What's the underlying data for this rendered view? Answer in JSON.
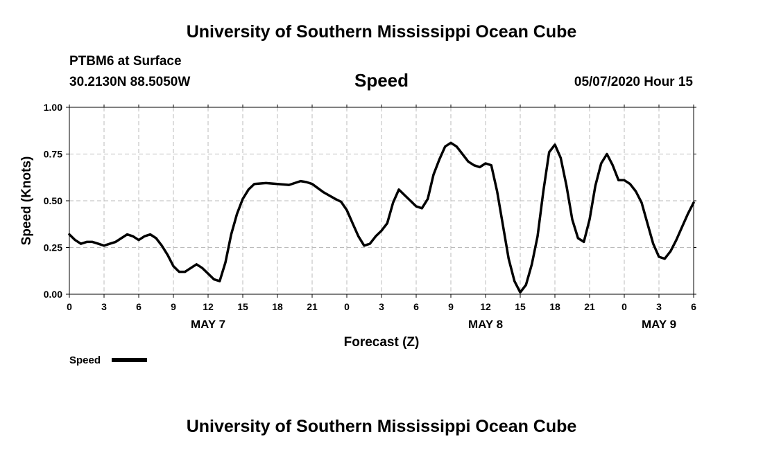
{
  "header": {
    "title": "University of Southern Mississippi Ocean Cube",
    "station": "PTBM6 at Surface",
    "coords": "30.2130N 88.5050W",
    "parameter": "Speed",
    "issued": "05/07/2020 Hour 15"
  },
  "footer": {
    "title": "University of Southern Mississippi Ocean Cube"
  },
  "legend": {
    "label": "Speed",
    "color": "#000000"
  },
  "chart_data": {
    "type": "line",
    "title": "Speed",
    "xlabel": "Forecast (Z)",
    "ylabel": "Speed (Knots)",
    "x_unit": "hours from 00Z MAY 7",
    "xlim": [
      0,
      54
    ],
    "ylim": [
      0,
      1
    ],
    "grid": true,
    "legend_position": "bottom-left",
    "y_ticks": [
      "0.00",
      "0.25",
      "0.50",
      "0.75",
      "1.00"
    ],
    "x_ticks": [
      {
        "x": 0,
        "label": "0"
      },
      {
        "x": 3,
        "label": "3"
      },
      {
        "x": 6,
        "label": "6"
      },
      {
        "x": 9,
        "label": "9"
      },
      {
        "x": 12,
        "label": "12"
      },
      {
        "x": 15,
        "label": "15"
      },
      {
        "x": 18,
        "label": "18"
      },
      {
        "x": 21,
        "label": "21"
      },
      {
        "x": 24,
        "label": "0"
      },
      {
        "x": 27,
        "label": "3"
      },
      {
        "x": 30,
        "label": "6"
      },
      {
        "x": 33,
        "label": "9"
      },
      {
        "x": 36,
        "label": "12"
      },
      {
        "x": 39,
        "label": "15"
      },
      {
        "x": 42,
        "label": "18"
      },
      {
        "x": 45,
        "label": "21"
      },
      {
        "x": 48,
        "label": "0"
      },
      {
        "x": 51,
        "label": "3"
      },
      {
        "x": 54,
        "label": "6"
      }
    ],
    "day_labels": [
      {
        "x": 12,
        "label": "MAY 7"
      },
      {
        "x": 36,
        "label": "MAY 8"
      },
      {
        "x": 51,
        "label": "MAY 9"
      }
    ],
    "series": [
      {
        "name": "Speed",
        "color": "#000000",
        "points": [
          [
            0,
            0.32
          ],
          [
            0.5,
            0.29
          ],
          [
            1,
            0.27
          ],
          [
            1.5,
            0.28
          ],
          [
            2,
            0.28
          ],
          [
            2.5,
            0.27
          ],
          [
            3,
            0.26
          ],
          [
            3.5,
            0.27
          ],
          [
            4,
            0.28
          ],
          [
            4.5,
            0.3
          ],
          [
            5,
            0.32
          ],
          [
            5.5,
            0.31
          ],
          [
            6,
            0.29
          ],
          [
            6.5,
            0.31
          ],
          [
            7,
            0.32
          ],
          [
            7.5,
            0.3
          ],
          [
            8,
            0.26
          ],
          [
            8.5,
            0.21
          ],
          [
            9,
            0.15
          ],
          [
            9.5,
            0.12
          ],
          [
            10,
            0.12
          ],
          [
            10.5,
            0.14
          ],
          [
            11,
            0.16
          ],
          [
            11.5,
            0.14
          ],
          [
            12,
            0.11
          ],
          [
            12.5,
            0.08
          ],
          [
            13,
            0.07
          ],
          [
            13.5,
            0.17
          ],
          [
            14,
            0.32
          ],
          [
            14.5,
            0.43
          ],
          [
            15,
            0.51
          ],
          [
            15.5,
            0.56
          ],
          [
            16,
            0.59
          ],
          [
            17,
            0.595
          ],
          [
            18,
            0.59
          ],
          [
            19,
            0.585
          ],
          [
            20,
            0.605
          ],
          [
            20.5,
            0.6
          ],
          [
            21,
            0.59
          ],
          [
            22,
            0.545
          ],
          [
            23,
            0.51
          ],
          [
            23.5,
            0.495
          ],
          [
            24,
            0.45
          ],
          [
            24.5,
            0.38
          ],
          [
            25,
            0.31
          ],
          [
            25.5,
            0.26
          ],
          [
            26,
            0.27
          ],
          [
            26.5,
            0.31
          ],
          [
            27,
            0.34
          ],
          [
            27.5,
            0.38
          ],
          [
            28,
            0.49
          ],
          [
            28.5,
            0.56
          ],
          [
            29,
            0.53
          ],
          [
            29.5,
            0.5
          ],
          [
            30,
            0.47
          ],
          [
            30.5,
            0.46
          ],
          [
            31,
            0.51
          ],
          [
            31.5,
            0.64
          ],
          [
            32,
            0.72
          ],
          [
            32.5,
            0.79
          ],
          [
            33,
            0.81
          ],
          [
            33.5,
            0.79
          ],
          [
            34,
            0.75
          ],
          [
            34.5,
            0.71
          ],
          [
            35,
            0.69
          ],
          [
            35.5,
            0.68
          ],
          [
            36,
            0.7
          ],
          [
            36.5,
            0.69
          ],
          [
            37,
            0.55
          ],
          [
            37.5,
            0.37
          ],
          [
            38,
            0.19
          ],
          [
            38.5,
            0.07
          ],
          [
            39,
            0.01
          ],
          [
            39.5,
            0.05
          ],
          [
            40,
            0.16
          ],
          [
            40.5,
            0.31
          ],
          [
            41,
            0.55
          ],
          [
            41.5,
            0.76
          ],
          [
            42,
            0.8
          ],
          [
            42.5,
            0.73
          ],
          [
            43,
            0.58
          ],
          [
            43.5,
            0.4
          ],
          [
            44,
            0.3
          ],
          [
            44.5,
            0.28
          ],
          [
            45,
            0.4
          ],
          [
            45.5,
            0.58
          ],
          [
            46,
            0.7
          ],
          [
            46.5,
            0.75
          ],
          [
            47,
            0.69
          ],
          [
            47.5,
            0.61
          ],
          [
            48,
            0.61
          ],
          [
            48.5,
            0.59
          ],
          [
            49,
            0.55
          ],
          [
            49.5,
            0.49
          ],
          [
            50,
            0.38
          ],
          [
            50.5,
            0.27
          ],
          [
            51,
            0.2
          ],
          [
            51.5,
            0.19
          ],
          [
            52,
            0.23
          ],
          [
            52.5,
            0.29
          ],
          [
            53,
            0.36
          ],
          [
            53.5,
            0.43
          ],
          [
            54,
            0.49
          ]
        ]
      }
    ]
  }
}
